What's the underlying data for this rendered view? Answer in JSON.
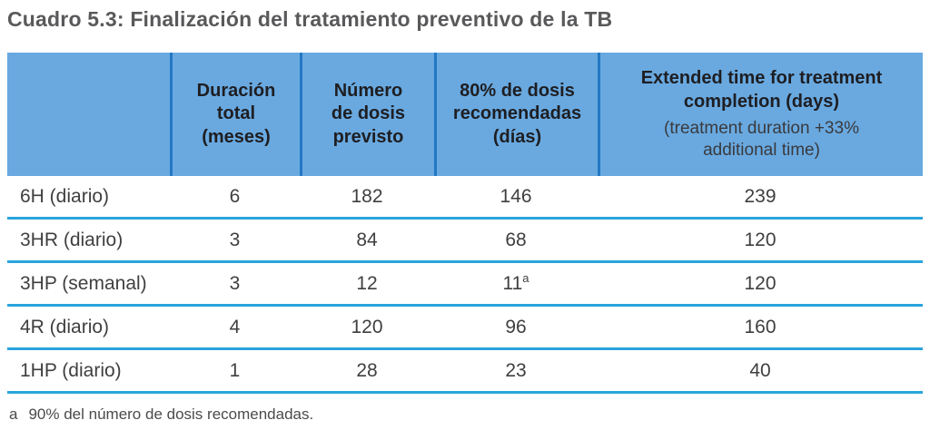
{
  "colors": {
    "header_bg": "#69A9E0",
    "header_separator": "#2378C3",
    "row_divider": "#29A4DC",
    "title_text": "#59595B",
    "header_text": "#1E1E22",
    "cell_text": "#3F3F41"
  },
  "title": "Cuadro 5.3: Finalización del tratamiento preventivo de la TB",
  "table": {
    "headers": {
      "regimen": "",
      "duration": "Duración\ntotal\n(meses)",
      "doses_planned": "Número\nde dosis\nprevisto",
      "doses_80": "80% de dosis\nrecomendadas\n(días)",
      "extended_main": "Extended time for treatment\ncompletion (days)",
      "extended_sub": "(treatment duration +33%\nadditional time)"
    },
    "rows": [
      {
        "regimen": "6H (diario)",
        "duration": "6",
        "doses_planned": "182",
        "doses_80": "146",
        "doses_80_sup": "",
        "extended": "239"
      },
      {
        "regimen": "3HR (diario)",
        "duration": "3",
        "doses_planned": "84",
        "doses_80": "68",
        "doses_80_sup": "",
        "extended": "120"
      },
      {
        "regimen": "3HP (semanal)",
        "duration": "3",
        "doses_planned": "12",
        "doses_80": "11",
        "doses_80_sup": "a",
        "extended": "120"
      },
      {
        "regimen": "4R (diario)",
        "duration": "4",
        "doses_planned": "120",
        "doses_80": "96",
        "doses_80_sup": "",
        "extended": "160"
      },
      {
        "regimen": "1HP (diario)",
        "duration": "1",
        "doses_planned": "28",
        "doses_80": "23",
        "doses_80_sup": "",
        "extended": "40"
      }
    ]
  },
  "footnote": {
    "marker": "a",
    "text": "90% del número de dosis recomendadas."
  }
}
